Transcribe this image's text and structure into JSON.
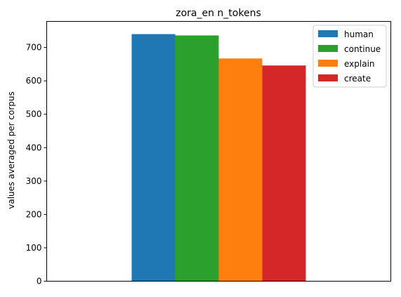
{
  "chart_data": {
    "type": "bar",
    "title": "zora_en n_tokens",
    "xlabel": "",
    "ylabel": "values averaged per corpus",
    "ylim": [
      0,
      778
    ],
    "yticks": [
      0,
      100,
      200,
      300,
      400,
      500,
      600,
      700
    ],
    "grid": false,
    "legend_position": "top-right",
    "series": [
      {
        "name": "human",
        "value": 740,
        "color": "#1f77b4"
      },
      {
        "name": "continue",
        "value": 736,
        "color": "#2ca02c"
      },
      {
        "name": "explain",
        "value": 667,
        "color": "#ff7f0e"
      },
      {
        "name": "create",
        "value": 646,
        "color": "#d62728"
      }
    ]
  }
}
